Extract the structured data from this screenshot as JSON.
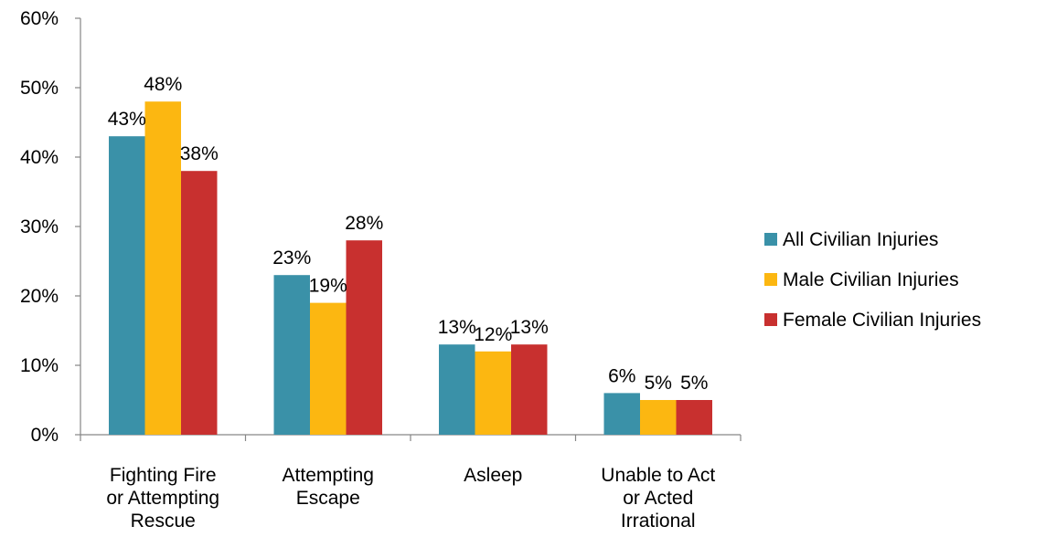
{
  "chart_data": {
    "type": "bar",
    "title": "",
    "xlabel": "",
    "ylabel": "",
    "ylim": [
      0,
      60
    ],
    "yticks": [
      "0%",
      "10%",
      "20%",
      "30%",
      "40%",
      "50%",
      "60%"
    ],
    "categories": [
      [
        "Fighting Fire",
        "or Attempting",
        "Rescue"
      ],
      [
        "Attempting",
        "Escape"
      ],
      [
        "Asleep"
      ],
      [
        "Unable to Act",
        "or Acted",
        "Irrational"
      ]
    ],
    "series": [
      {
        "name": "All Civilian Injuries",
        "color": "#3a91a8",
        "values": [
          43,
          23,
          13,
          6
        ],
        "labels": [
          "43%",
          "23%",
          "13%",
          "6%"
        ]
      },
      {
        "name": "Male Civilian Injuries",
        "color": "#fcb711",
        "values": [
          48,
          19,
          12,
          5
        ],
        "labels": [
          "48%",
          "19%",
          "12%",
          "5%"
        ]
      },
      {
        "name": "Female Civilian Injuries",
        "color": "#c8302f",
        "values": [
          38,
          28,
          13,
          5
        ],
        "labels": [
          "38%",
          "28%",
          "13%",
          "5%"
        ]
      }
    ],
    "grid": false,
    "legend": "right"
  }
}
